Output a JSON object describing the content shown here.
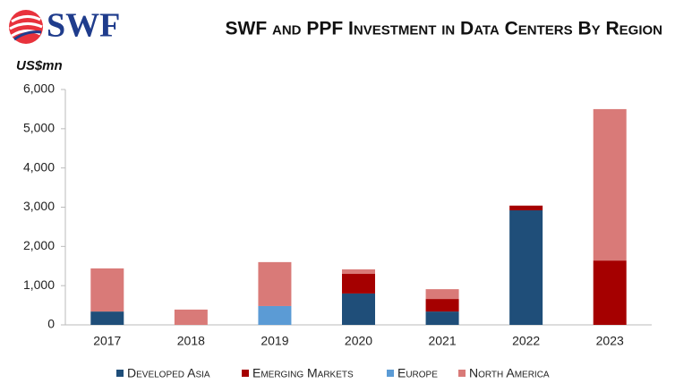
{
  "logo": "SWF",
  "chart_data": {
    "type": "stacked-bar",
    "title": "SWF and PPF Investment in Data Centers By Region",
    "y_label": "US$mn",
    "categories": [
      "2017",
      "2018",
      "2019",
      "2020",
      "2021",
      "2022",
      "2023"
    ],
    "series": [
      {
        "name": "Developed Asia",
        "color": "#1f4e79",
        "values": [
          340,
          null,
          null,
          800,
          340,
          2920,
          null
        ]
      },
      {
        "name": "Emerging Markets",
        "color": "#a50000",
        "values": [
          null,
          null,
          null,
          500,
          320,
          120,
          1640
        ]
      },
      {
        "name": "Europe",
        "color": "#5b9bd5",
        "values": [
          null,
          null,
          480,
          null,
          null,
          null,
          null
        ]
      },
      {
        "name": "North America",
        "color": "#d97a78",
        "values": [
          1100,
          390,
          1120,
          115,
          250,
          null,
          3860
        ]
      }
    ],
    "ylim": [
      0,
      6000
    ],
    "yticks": [
      0,
      {
        "value": 1000,
        "label": "1,000"
      },
      {
        "value": 2000,
        "label": "2,000"
      },
      {
        "value": 3000,
        "label": "3,000"
      },
      {
        "value": 4000,
        "label": "4,000"
      },
      {
        "value": 5000,
        "label": "5,000"
      },
      {
        "value": 6000,
        "label": "6,000"
      }
    ],
    "grid": false,
    "legend": "bottom"
  }
}
